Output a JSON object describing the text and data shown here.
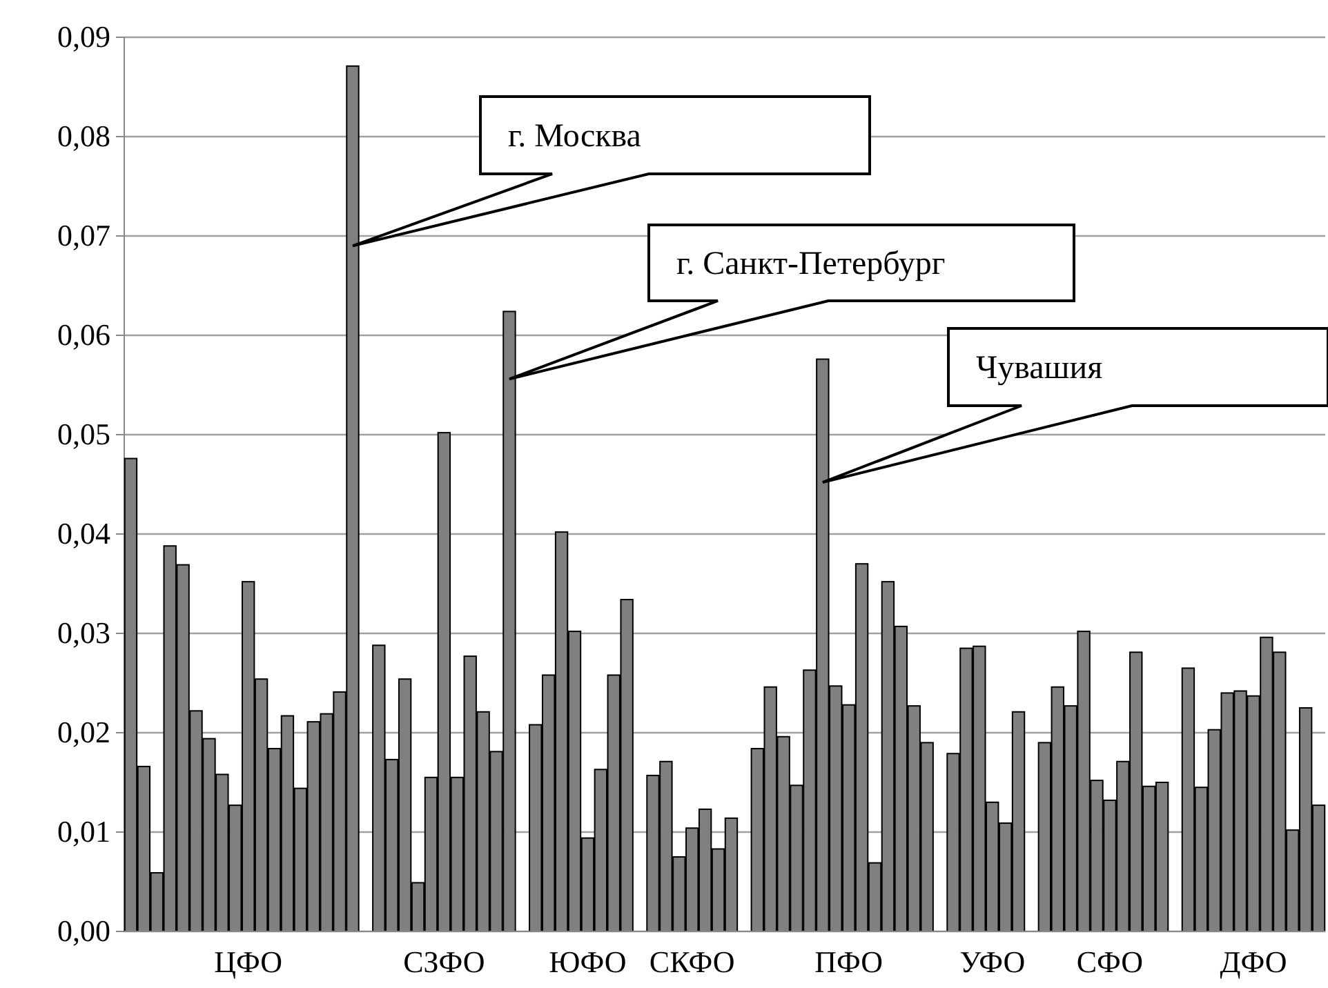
{
  "chart_data": {
    "type": "bar",
    "categories": [
      null,
      null,
      null,
      null,
      null,
      null,
      null,
      null,
      null,
      "ЦФО",
      null,
      null,
      null,
      null,
      null,
      null,
      null,
      null,
      null,
      null,
      null,
      null,
      null,
      null,
      "СЗФО",
      null,
      null,
      null,
      null,
      null,
      null,
      null,
      null,
      null,
      null,
      "ЮФО",
      null,
      null,
      null,
      null,
      null,
      null,
      null,
      "СКФО",
      null,
      null,
      null,
      null,
      null,
      null,
      null,
      null,
      null,
      null,
      null,
      "ПФО",
      null,
      null,
      null,
      null,
      null,
      null,
      null,
      null,
      null,
      null,
      "УФО",
      null,
      null,
      null,
      null,
      null,
      null,
      null,
      null,
      "СФО",
      null,
      null,
      null,
      null,
      null,
      null,
      null,
      null,
      null,
      null,
      "ДФО",
      null,
      null,
      null,
      null,
      null
    ],
    "values": [
      0.0476,
      0.0166,
      0.0059,
      0.0388,
      0.0369,
      0.0222,
      0.0194,
      0.0158,
      0.0127,
      0.0352,
      0.0254,
      0.0184,
      0.0217,
      0.0144,
      0.0211,
      0.0219,
      0.0241,
      0.0871,
      null,
      0.0288,
      0.0173,
      0.0254,
      0.0049,
      0.0155,
      0.0502,
      0.0155,
      0.0277,
      0.0221,
      0.0181,
      0.0624,
      null,
      0.0208,
      0.0258,
      0.0402,
      0.0302,
      0.0094,
      0.0163,
      0.0258,
      0.0334,
      null,
      0.0157,
      0.0171,
      0.0075,
      0.0104,
      0.0123,
      0.0083,
      0.0114,
      null,
      0.0184,
      0.0246,
      0.0196,
      0.0147,
      0.0263,
      0.0576,
      0.0247,
      0.0228,
      0.037,
      0.0069,
      0.0352,
      0.0307,
      0.0227,
      0.019,
      null,
      0.0179,
      0.0285,
      0.0287,
      0.013,
      0.0109,
      0.0221,
      null,
      0.019,
      0.0246,
      0.0227,
      0.0302,
      0.0152,
      0.0132,
      0.0171,
      0.0281,
      0.0146,
      0.015,
      null,
      0.0265,
      0.0145,
      0.0203,
      0.024,
      0.0242,
      0.0237,
      0.0296,
      0.0281,
      0.0102,
      0.0225,
      0.0127
    ],
    "color": "#808080",
    "ylim": [
      0,
      0.09
    ],
    "yticks": [
      {
        "value": 0,
        "label": "0,00"
      },
      {
        "value": 0.01,
        "label": "0,01"
      },
      {
        "value": 0.02,
        "label": "0,02"
      },
      {
        "value": 0.03,
        "label": "0,03"
      },
      {
        "value": 0.04,
        "label": "0,04"
      },
      {
        "value": 0.05,
        "label": "0,05"
      },
      {
        "value": 0.06,
        "label": "0,06"
      },
      {
        "value": 0.07,
        "label": "0,07"
      },
      {
        "value": 0.08,
        "label": "0,08"
      },
      {
        "value": 0.09,
        "label": "0,09"
      }
    ],
    "grid": "y",
    "annotations": [
      "г. Москва",
      "г. Санкт-Петербург",
      "Чувашия"
    ]
  }
}
